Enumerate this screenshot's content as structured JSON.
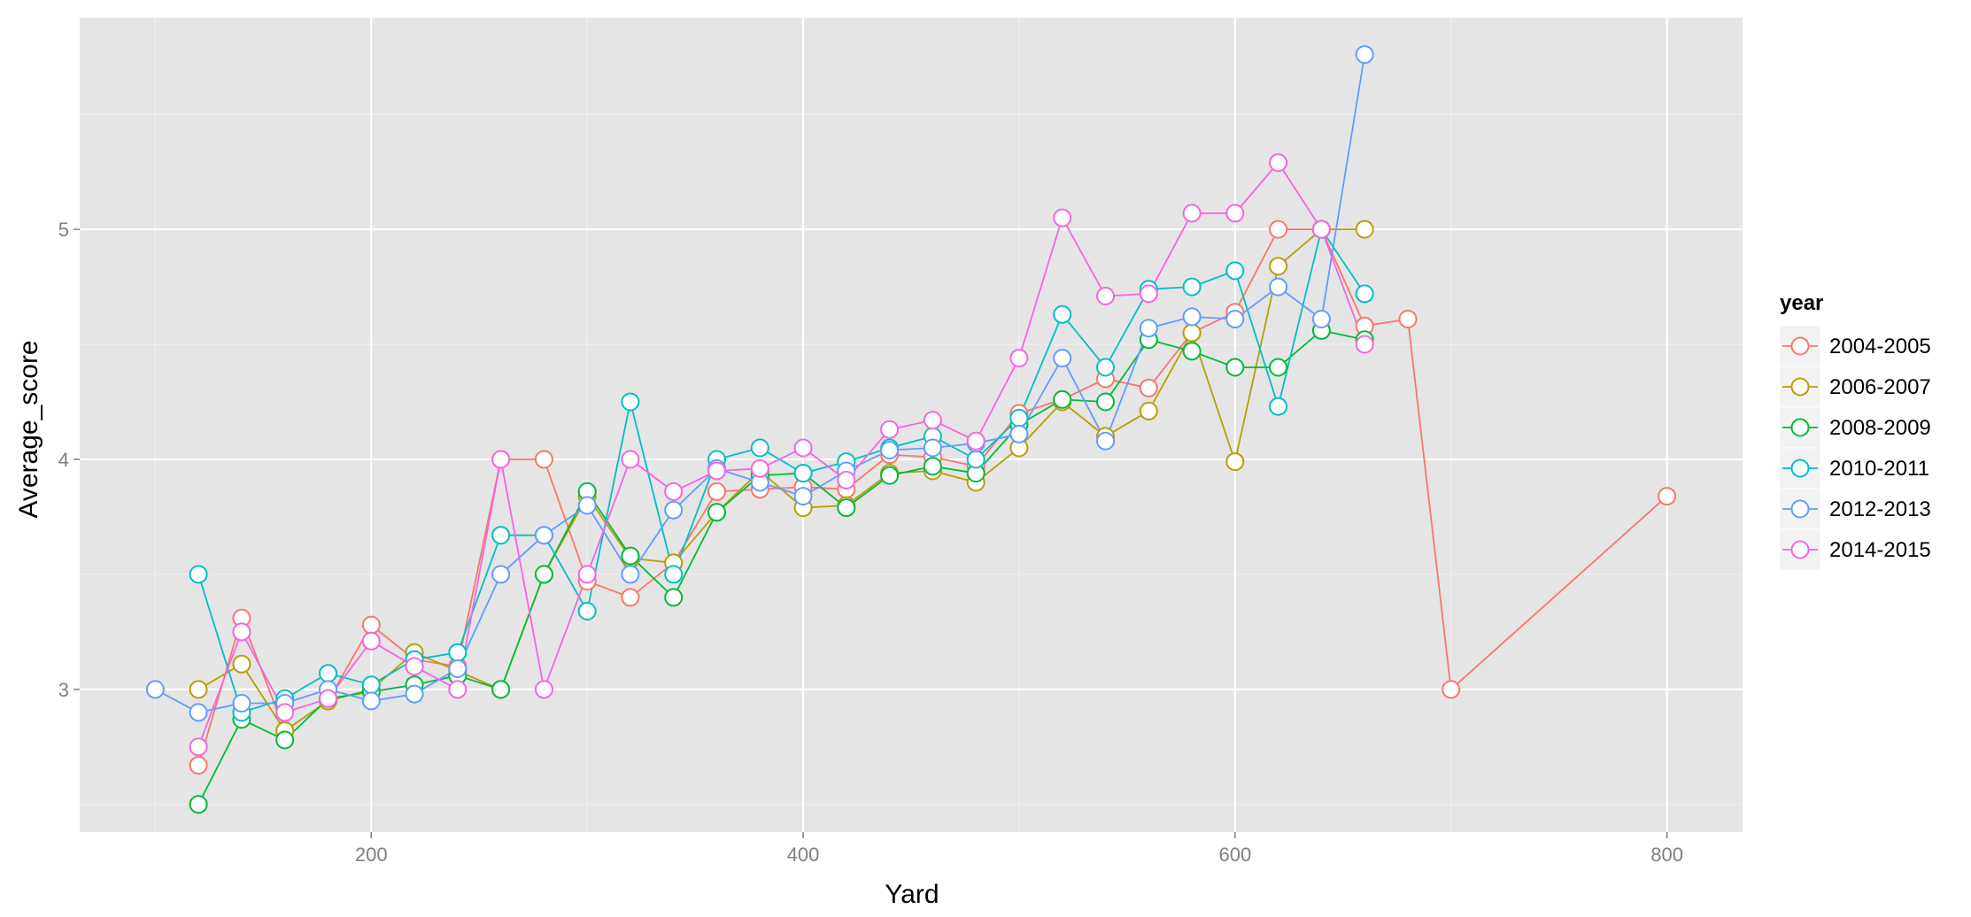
{
  "chart_data": {
    "type": "line",
    "xlabel": "Yard",
    "ylabel": "Average_score",
    "xlim": [
      65,
      835
    ],
    "ylim": [
      2.38,
      5.92
    ],
    "x_ticks": [
      200,
      400,
      600,
      800
    ],
    "y_ticks": [
      3,
      4,
      5
    ],
    "grid": true,
    "panel_background": "#e5e5e5",
    "legend": {
      "title": "year",
      "placement": "right"
    },
    "series": [
      {
        "name": "2004-2005",
        "color": "#f8766d",
        "points": [
          [
            120,
            2.67
          ],
          [
            140,
            3.31
          ],
          [
            160,
            2.82
          ],
          [
            180,
            2.95
          ],
          [
            200,
            3.28
          ],
          [
            220,
            3.13
          ],
          [
            240,
            3.1
          ],
          [
            260,
            4.0
          ],
          [
            280,
            4.0
          ],
          [
            300,
            3.47
          ],
          [
            320,
            3.4
          ],
          [
            340,
            3.55
          ],
          [
            360,
            3.86
          ],
          [
            380,
            3.87
          ],
          [
            400,
            3.88
          ],
          [
            420,
            3.87
          ],
          [
            440,
            4.02
          ],
          [
            460,
            4.01
          ],
          [
            480,
            3.97
          ],
          [
            500,
            4.2
          ],
          [
            520,
            4.26
          ],
          [
            540,
            4.35
          ],
          [
            560,
            4.31
          ],
          [
            580,
            4.55
          ],
          [
            600,
            4.64
          ],
          [
            620,
            5.0
          ],
          [
            640,
            5.0
          ],
          [
            660,
            4.58
          ],
          [
            680,
            4.61
          ],
          [
            700,
            3.0
          ],
          [
            800,
            3.84
          ]
        ]
      },
      {
        "name": "2006-2007",
        "color": "#b79f00",
        "points": [
          [
            120,
            3.0
          ],
          [
            140,
            3.11
          ],
          [
            160,
            2.82
          ],
          [
            180,
            2.95
          ],
          [
            200,
            3.0
          ],
          [
            220,
            3.16
          ],
          [
            240,
            3.08
          ],
          [
            260,
            3.0
          ],
          [
            280,
            3.5
          ],
          [
            300,
            3.84
          ],
          [
            320,
            3.57
          ],
          [
            340,
            3.55
          ],
          [
            360,
            3.77
          ],
          [
            380,
            3.95
          ],
          [
            400,
            3.79
          ],
          [
            420,
            3.8
          ],
          [
            440,
            3.94
          ],
          [
            460,
            3.95
          ],
          [
            480,
            3.9
          ],
          [
            500,
            4.05
          ],
          [
            520,
            4.25
          ],
          [
            540,
            4.1
          ],
          [
            560,
            4.21
          ],
          [
            580,
            4.55
          ],
          [
            600,
            3.99
          ],
          [
            620,
            4.84
          ],
          [
            640,
            5.0
          ],
          [
            660,
            5.0
          ]
        ]
      },
      {
        "name": "2008-2009",
        "color": "#00ba38",
        "points": [
          [
            120,
            2.5
          ],
          [
            140,
            2.87
          ],
          [
            160,
            2.78
          ],
          [
            180,
            2.96
          ],
          [
            200,
            2.99
          ],
          [
            220,
            3.02
          ],
          [
            240,
            3.06
          ],
          [
            260,
            3.0
          ],
          [
            280,
            3.5
          ],
          [
            300,
            3.86
          ],
          [
            320,
            3.58
          ],
          [
            340,
            3.4
          ],
          [
            360,
            3.77
          ],
          [
            380,
            3.93
          ],
          [
            400,
            3.94
          ],
          [
            420,
            3.79
          ],
          [
            440,
            3.93
          ],
          [
            460,
            3.97
          ],
          [
            480,
            3.94
          ],
          [
            500,
            4.15
          ],
          [
            520,
            4.26
          ],
          [
            540,
            4.25
          ],
          [
            560,
            4.52
          ],
          [
            580,
            4.47
          ],
          [
            600,
            4.4
          ],
          [
            620,
            4.4
          ],
          [
            640,
            4.56
          ],
          [
            660,
            4.52
          ]
        ]
      },
      {
        "name": "2010-2011",
        "color": "#00bfc4",
        "points": [
          [
            120,
            3.5
          ],
          [
            140,
            2.9
          ],
          [
            160,
            2.96
          ],
          [
            180,
            3.07
          ],
          [
            200,
            3.02
          ],
          [
            220,
            3.13
          ],
          [
            240,
            3.16
          ],
          [
            260,
            3.67
          ],
          [
            280,
            3.67
          ],
          [
            300,
            3.34
          ],
          [
            320,
            4.25
          ],
          [
            340,
            3.5
          ],
          [
            360,
            4.0
          ],
          [
            380,
            4.05
          ],
          [
            400,
            3.94
          ],
          [
            420,
            3.99
          ],
          [
            440,
            4.05
          ],
          [
            460,
            4.1
          ],
          [
            480,
            4.0
          ],
          [
            500,
            4.18
          ],
          [
            520,
            4.63
          ],
          [
            540,
            4.4
          ],
          [
            560,
            4.74
          ],
          [
            580,
            4.75
          ],
          [
            600,
            4.82
          ],
          [
            620,
            4.23
          ],
          [
            640,
            5.0
          ],
          [
            660,
            4.72
          ]
        ]
      },
      {
        "name": "2012-2013",
        "color": "#619cff",
        "points": [
          [
            100,
            3.0
          ],
          [
            120,
            2.9
          ],
          [
            140,
            2.94
          ],
          [
            160,
            2.94
          ],
          [
            180,
            3.0
          ],
          [
            200,
            2.95
          ],
          [
            220,
            2.98
          ],
          [
            240,
            3.09
          ],
          [
            260,
            3.5
          ],
          [
            280,
            3.67
          ],
          [
            300,
            3.8
          ],
          [
            320,
            3.5
          ],
          [
            340,
            3.78
          ],
          [
            360,
            3.96
          ],
          [
            380,
            3.9
          ],
          [
            400,
            3.84
          ],
          [
            420,
            3.95
          ],
          [
            440,
            4.04
          ],
          [
            460,
            4.05
          ],
          [
            480,
            4.07
          ],
          [
            500,
            4.11
          ],
          [
            520,
            4.44
          ],
          [
            540,
            4.08
          ],
          [
            560,
            4.57
          ],
          [
            580,
            4.62
          ],
          [
            600,
            4.61
          ],
          [
            620,
            4.75
          ],
          [
            640,
            4.61
          ],
          [
            660,
            5.76
          ]
        ]
      },
      {
        "name": "2014-2015",
        "color": "#f564e3",
        "points": [
          [
            120,
            2.75
          ],
          [
            140,
            3.25
          ],
          [
            160,
            2.9
          ],
          [
            180,
            2.96
          ],
          [
            200,
            3.21
          ],
          [
            220,
            3.1
          ],
          [
            240,
            3.0
          ],
          [
            260,
            4.0
          ],
          [
            280,
            3.0
          ],
          [
            300,
            3.5
          ],
          [
            320,
            4.0
          ],
          [
            340,
            3.86
          ],
          [
            360,
            3.95
          ],
          [
            380,
            3.96
          ],
          [
            400,
            4.05
          ],
          [
            420,
            3.91
          ],
          [
            440,
            4.13
          ],
          [
            460,
            4.17
          ],
          [
            480,
            4.08
          ],
          [
            500,
            4.44
          ],
          [
            520,
            5.05
          ],
          [
            540,
            4.71
          ],
          [
            560,
            4.72
          ],
          [
            580,
            5.07
          ],
          [
            600,
            5.07
          ],
          [
            620,
            5.29
          ],
          [
            640,
            5.0
          ],
          [
            660,
            4.5
          ]
        ]
      }
    ]
  }
}
